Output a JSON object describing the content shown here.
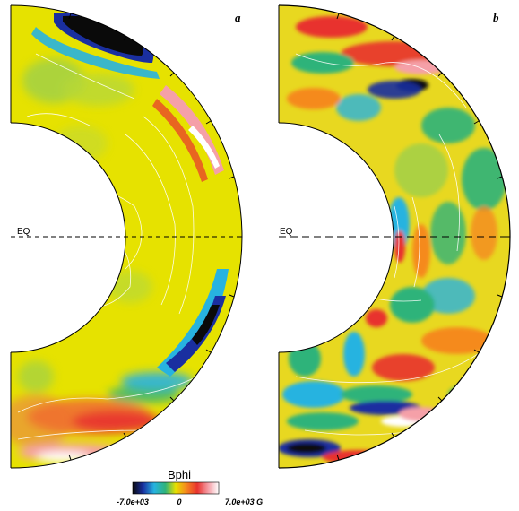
{
  "panels": [
    {
      "letter": "a",
      "equator_label": "EQ"
    },
    {
      "letter": "b",
      "equator_label": "EQ"
    }
  ],
  "colorbar": {
    "title": "Bphi",
    "tick_min": "-7.0e+03",
    "tick_mid": "0",
    "tick_max": "7.0e+03 G",
    "stops": [
      "#0a0a0a",
      "#1a2fa0",
      "#27b3e0",
      "#2fb37a",
      "#e8e000",
      "#f58a1e",
      "#e8322e",
      "#f5a0a8",
      "#ffffff"
    ]
  }
}
